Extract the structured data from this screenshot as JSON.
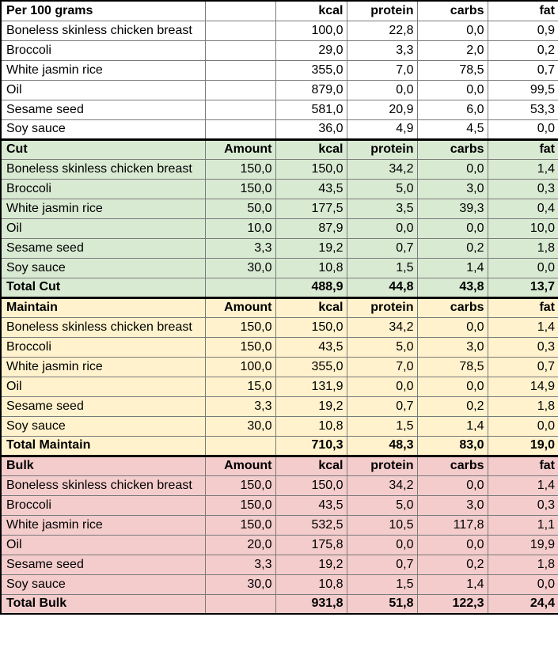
{
  "per100": {
    "header": [
      "Per 100 grams",
      "",
      "kcal",
      "protein",
      "carbs",
      "fat"
    ],
    "rows": [
      [
        "Boneless skinless chicken breast",
        "",
        "100,0",
        "22,8",
        "0,0",
        "0,9"
      ],
      [
        "Broccoli",
        "",
        "29,0",
        "3,3",
        "2,0",
        "0,2"
      ],
      [
        "White jasmin rice",
        "",
        "355,0",
        "7,0",
        "78,5",
        "0,7"
      ],
      [
        "Oil",
        "",
        "879,0",
        "0,0",
        "0,0",
        "99,5"
      ],
      [
        "Sesame seed",
        "",
        "581,0",
        "20,9",
        "6,0",
        "53,3"
      ],
      [
        "Soy sauce",
        "",
        "36,0",
        "4,9",
        "4,5",
        "0,0"
      ]
    ]
  },
  "cut": {
    "header": [
      "Cut",
      "Amount",
      "kcal",
      "protein",
      "carbs",
      "fat"
    ],
    "rows": [
      [
        "Boneless skinless chicken breast",
        "150,0",
        "150,0",
        "34,2",
        "0,0",
        "1,4"
      ],
      [
        "Broccoli",
        "150,0",
        "43,5",
        "5,0",
        "3,0",
        "0,3"
      ],
      [
        "White jasmin rice",
        "50,0",
        "177,5",
        "3,5",
        "39,3",
        "0,4"
      ],
      [
        "Oil",
        "10,0",
        "87,9",
        "0,0",
        "0,0",
        "10,0"
      ],
      [
        "Sesame seed",
        "3,3",
        "19,2",
        "0,7",
        "0,2",
        "1,8"
      ],
      [
        "Soy sauce",
        "30,0",
        "10,8",
        "1,5",
        "1,4",
        "0,0"
      ]
    ],
    "total": [
      "Total Cut",
      "",
      "488,9",
      "44,8",
      "43,8",
      "13,7"
    ]
  },
  "maintain": {
    "header": [
      "Maintain",
      "Amount",
      "kcal",
      "protein",
      "carbs",
      "fat"
    ],
    "rows": [
      [
        "Boneless skinless chicken breast",
        "150,0",
        "150,0",
        "34,2",
        "0,0",
        "1,4"
      ],
      [
        "Broccoli",
        "150,0",
        "43,5",
        "5,0",
        "3,0",
        "0,3"
      ],
      [
        "White jasmin rice",
        "100,0",
        "355,0",
        "7,0",
        "78,5",
        "0,7"
      ],
      [
        "Oil",
        "15,0",
        "131,9",
        "0,0",
        "0,0",
        "14,9"
      ],
      [
        "Sesame seed",
        "3,3",
        "19,2",
        "0,7",
        "0,2",
        "1,8"
      ],
      [
        "Soy sauce",
        "30,0",
        "10,8",
        "1,5",
        "1,4",
        "0,0"
      ]
    ],
    "total": [
      "Total Maintain",
      "",
      "710,3",
      "48,3",
      "83,0",
      "19,0"
    ]
  },
  "bulk": {
    "header": [
      "Bulk",
      "Amount",
      "kcal",
      "protein",
      "carbs",
      "fat"
    ],
    "rows": [
      [
        "Boneless skinless chicken breast",
        "150,0",
        "150,0",
        "34,2",
        "0,0",
        "1,4"
      ],
      [
        "Broccoli",
        "150,0",
        "43,5",
        "5,0",
        "3,0",
        "0,3"
      ],
      [
        "White jasmin rice",
        "150,0",
        "532,5",
        "10,5",
        "117,8",
        "1,1"
      ],
      [
        "Oil",
        "20,0",
        "175,8",
        "0,0",
        "0,0",
        "19,9"
      ],
      [
        "Sesame seed",
        "3,3",
        "19,2",
        "0,7",
        "0,2",
        "1,8"
      ],
      [
        "Soy sauce",
        "30,0",
        "10,8",
        "1,5",
        "1,4",
        "0,0"
      ]
    ],
    "total": [
      "Total Bulk",
      "",
      "931,8",
      "51,8",
      "122,3",
      "24,4"
    ]
  },
  "colors": {
    "cut_bg": "#d9ead3",
    "maintain_bg": "#fff2cc",
    "bulk_bg": "#f4cccc",
    "border": "#7a7a7a",
    "section_border": "#000000"
  }
}
